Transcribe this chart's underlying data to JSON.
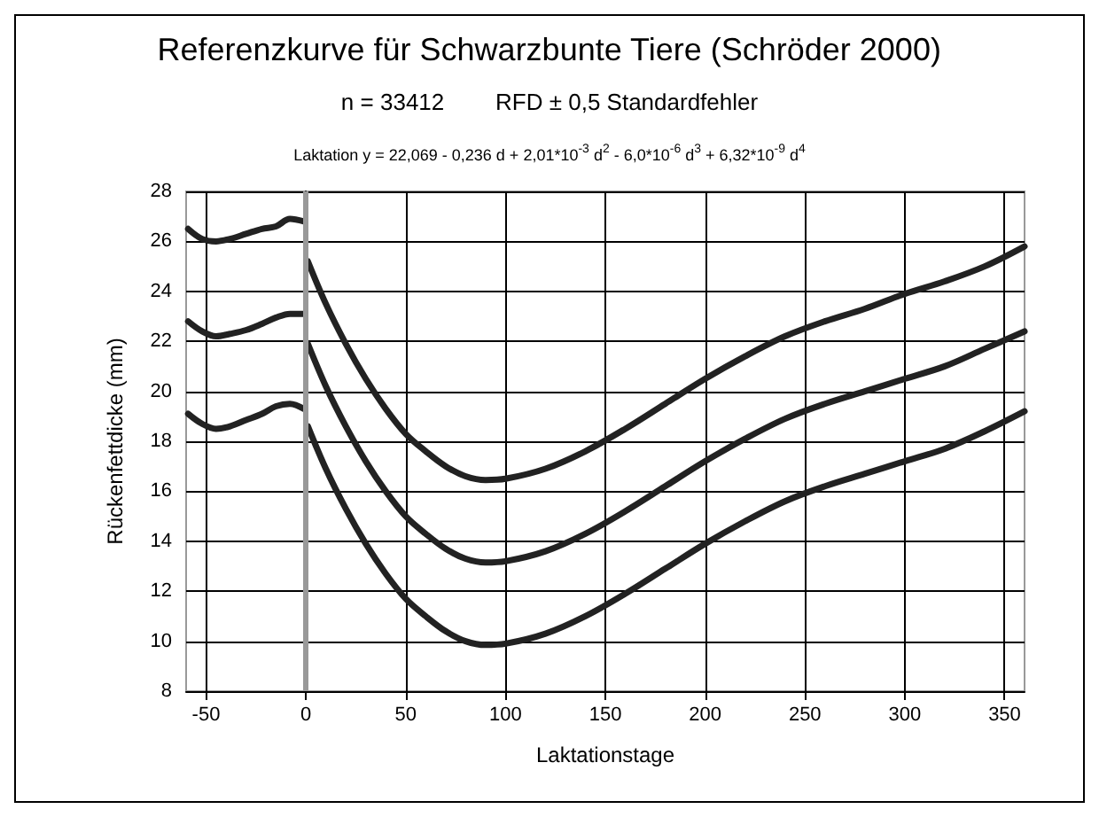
{
  "chart_data": {
    "type": "line",
    "title": "Referenzkurve für Schwarzbunte Tiere (Schröder 2000)",
    "subtitle": "n = 33412        RFD ± 0,5 Standardfehler",
    "annotations": [
      "Laktation y = 22,069 - 0,236 d + 2,01*10$^{-3}$ d$^{2}$ - 6,0*10$^{-6}$ d$^{3}$ + 6,32*10$^{-9}$ d$^{4}$"
    ],
    "xlabel": "Laktationstage",
    "ylabel": "Rückenfettdicke (mm)",
    "x": [
      -59,
      -52,
      -45,
      -38,
      -30,
      -22,
      -15,
      -8,
      -1,
      0,
      1,
      10,
      20,
      30,
      40,
      50,
      60,
      70,
      80,
      90,
      100,
      120,
      140,
      160,
      180,
      200,
      220,
      240,
      260,
      280,
      300,
      320,
      340,
      360
    ],
    "series": [
      {
        "color": "#222222",
        "values": [
          26.5,
          26.1,
          26.0,
          26.1,
          26.3,
          26.5,
          26.6,
          26.9,
          26.8,
          null,
          25.2,
          23.5,
          21.9,
          20.5,
          19.3,
          18.3,
          17.6,
          17.0,
          16.6,
          16.45,
          16.5,
          16.9,
          17.6,
          18.5,
          19.5,
          20.5,
          21.4,
          22.2,
          22.8,
          23.3,
          23.9,
          24.4,
          25.0,
          25.8
        ]
      },
      {
        "color": "#222222",
        "values": [
          22.8,
          22.4,
          22.2,
          22.3,
          22.45,
          22.7,
          22.95,
          23.1,
          23.1,
          null,
          21.9,
          20.2,
          18.6,
          17.2,
          16.0,
          15.0,
          14.3,
          13.7,
          13.3,
          13.15,
          13.2,
          13.6,
          14.3,
          15.2,
          16.2,
          17.2,
          18.1,
          18.9,
          19.5,
          20.0,
          20.5,
          21.0,
          21.7,
          22.4
        ]
      },
      {
        "color": "#222222",
        "values": [
          19.1,
          18.7,
          18.5,
          18.6,
          18.85,
          19.1,
          19.4,
          19.5,
          19.3,
          null,
          18.6,
          16.9,
          15.3,
          13.9,
          12.7,
          11.7,
          11.0,
          10.4,
          10.0,
          9.85,
          9.9,
          10.3,
          11.0,
          11.9,
          12.9,
          13.9,
          14.8,
          15.6,
          16.2,
          16.7,
          17.2,
          17.7,
          18.4,
          19.2
        ]
      }
    ],
    "xlim": [
      -60,
      360
    ],
    "xticks": [
      -50,
      0,
      50,
      100,
      150,
      200,
      250,
      300,
      350
    ],
    "ylim": [
      8,
      28
    ],
    "yticks": [
      8,
      10,
      12,
      14,
      16,
      18,
      20,
      22,
      24,
      26,
      28
    ],
    "ref_lines": [
      {
        "axis": "x",
        "value": 0,
        "color": "#999999"
      }
    ],
    "grid": true,
    "marker": "none",
    "line_style": "solid"
  }
}
